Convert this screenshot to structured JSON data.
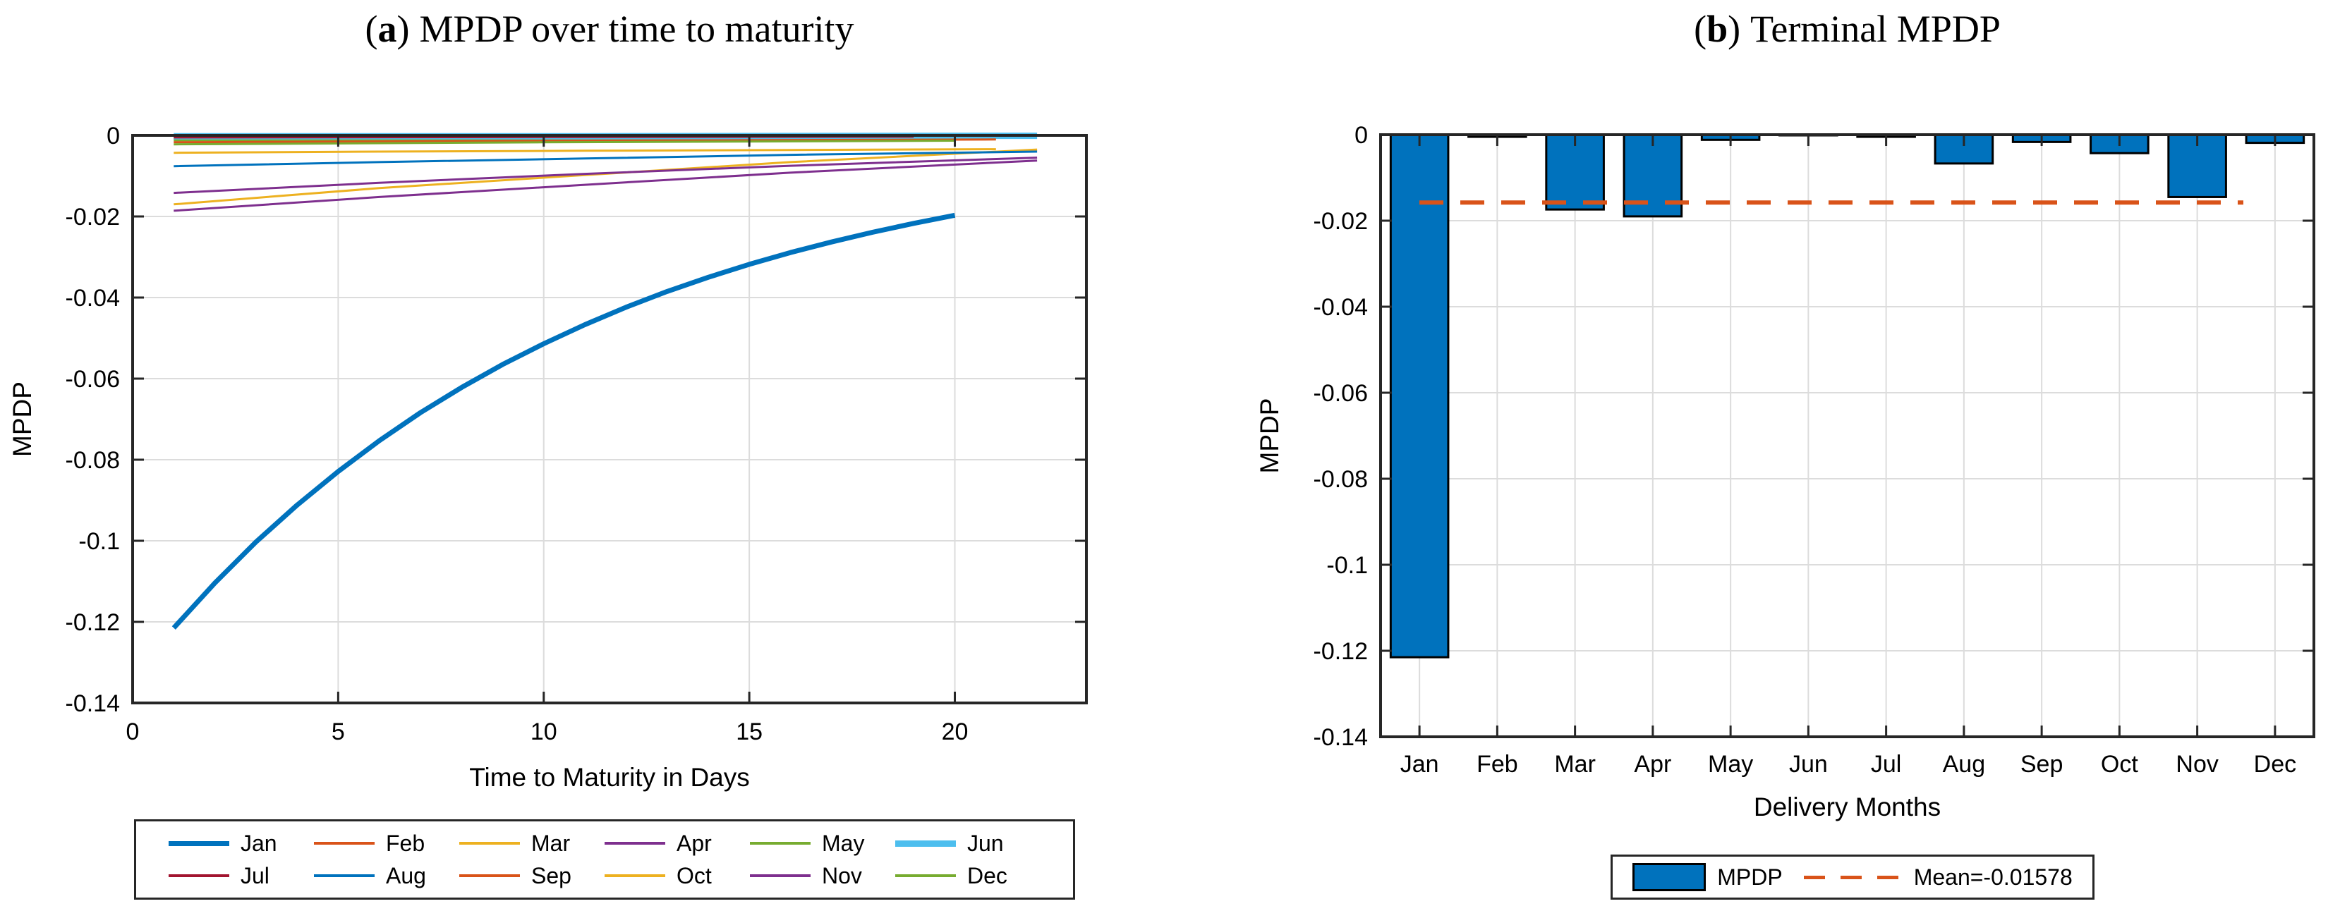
{
  "figure": {
    "background": "#ffffff",
    "axis_color": "#262626",
    "grid_color": "#dcdcdc",
    "text_color": "#000000"
  },
  "chart_data": [
    {
      "id": "mpdp-over-time",
      "type": "line",
      "label_open": "(",
      "panel_label": "a",
      "label_close": ")",
      "title": "MPDP over time to maturity",
      "xlabel": "Time to Maturity in Days",
      "ylabel": "MPDP",
      "xlim": [
        0,
        23.2
      ],
      "ylim": [
        -0.14,
        0
      ],
      "xticks": [
        0,
        5,
        10,
        15,
        20
      ],
      "xtick_labels": [
        "0",
        "5",
        "10",
        "15",
        "20"
      ],
      "yticks": [
        0,
        -0.02,
        -0.04,
        -0.06,
        -0.08,
        -0.1,
        -0.12,
        -0.14
      ],
      "ytick_labels": [
        "0",
        "-0.02",
        "-0.04",
        "-0.06",
        "-0.08",
        "-0.1",
        "-0.12",
        "-0.14"
      ],
      "grid": true,
      "legend_position": "below",
      "series": [
        {
          "name": "Jan",
          "color": "#0072BD",
          "width": 7,
          "points": [
            [
              1,
              -0.1215
            ],
            [
              2,
              -0.1104
            ],
            [
              3,
              -0.1003
            ],
            [
              4,
              -0.0912
            ],
            [
              5,
              -0.0829
            ],
            [
              6,
              -0.0753
            ],
            [
              7,
              -0.0684
            ],
            [
              8,
              -0.0622
            ],
            [
              9,
              -0.0565
            ],
            [
              10,
              -0.0514
            ],
            [
              11,
              -0.0467
            ],
            [
              12,
              -0.0424
            ],
            [
              13,
              -0.0385
            ],
            [
              14,
              -0.035
            ],
            [
              15,
              -0.0318
            ],
            [
              16,
              -0.0289
            ],
            [
              17,
              -0.0263
            ],
            [
              18,
              -0.0239
            ],
            [
              19,
              -0.0217
            ],
            [
              20,
              -0.0197
            ]
          ]
        },
        {
          "name": "Feb",
          "color": "#D95319",
          "width": 3,
          "points": [
            [
              1,
              -0.0008
            ],
            [
              11,
              -0.0006
            ],
            [
              21,
              -0.0004
            ]
          ]
        },
        {
          "name": "Mar",
          "color": "#EDB120",
          "width": 3,
          "points": [
            [
              1,
              -0.017
            ],
            [
              6,
              -0.013
            ],
            [
              11,
              -0.0098
            ],
            [
              16,
              -0.0066
            ],
            [
              22,
              -0.0035
            ]
          ]
        },
        {
          "name": "Apr",
          "color": "#7E2F8E",
          "width": 3,
          "points": [
            [
              1,
              -0.0186
            ],
            [
              6,
              -0.0152
            ],
            [
              11,
              -0.0122
            ],
            [
              16,
              -0.0092
            ],
            [
              22,
              -0.0062
            ]
          ]
        },
        {
          "name": "May",
          "color": "#77AC30",
          "width": 3,
          "points": [
            [
              1,
              -0.0012
            ],
            [
              10,
              -0.0009
            ],
            [
              20,
              -0.0007
            ]
          ]
        },
        {
          "name": "Jun",
          "color": "#4DBEEE",
          "width": 9,
          "points": [
            [
              1,
              -0.0002
            ],
            [
              11,
              -0.0002
            ],
            [
              22,
              -0.0001
            ]
          ]
        },
        {
          "name": "Jul",
          "color": "#A2142F",
          "width": 3,
          "points": [
            [
              1,
              -0.0005
            ],
            [
              10,
              -0.0004
            ],
            [
              19,
              -0.0003
            ]
          ]
        },
        {
          "name": "Aug",
          "color": "#0072BD",
          "width": 3,
          "points": [
            [
              1,
              -0.0076
            ],
            [
              6,
              -0.0066
            ],
            [
              11,
              -0.0057
            ],
            [
              16,
              -0.0048
            ],
            [
              22,
              -0.004
            ]
          ]
        },
        {
          "name": "Sep",
          "color": "#D95319",
          "width": 3,
          "points": [
            [
              1,
              -0.0017
            ],
            [
              11,
              -0.0013
            ],
            [
              21,
              -0.001
            ]
          ]
        },
        {
          "name": "Oct",
          "color": "#EDB120",
          "width": 3,
          "points": [
            [
              1,
              -0.0043
            ],
            [
              6,
              -0.004
            ],
            [
              11,
              -0.0038
            ],
            [
              16,
              -0.0036
            ],
            [
              21,
              -0.0034
            ]
          ]
        },
        {
          "name": "Nov",
          "color": "#7E2F8E",
          "width": 3,
          "points": [
            [
              1,
              -0.0142
            ],
            [
              6,
              -0.0117
            ],
            [
              11,
              -0.0095
            ],
            [
              16,
              -0.0075
            ],
            [
              22,
              -0.0055
            ]
          ]
        },
        {
          "name": "Dec",
          "color": "#77AC30",
          "width": 3,
          "points": [
            [
              1,
              -0.0022
            ],
            [
              10,
              -0.0017
            ],
            [
              20,
              -0.0013
            ]
          ]
        }
      ]
    },
    {
      "id": "terminal-mpdp",
      "type": "bar",
      "label_open": "(",
      "panel_label": "b",
      "label_close": ")",
      "title": "Terminal MPDP",
      "xlabel": "Delivery Months",
      "ylabel": "MPDP",
      "categories": [
        "Jan",
        "Feb",
        "Mar",
        "Apr",
        "May",
        "Jun",
        "Jul",
        "Aug",
        "Sep",
        "Oct",
        "Nov",
        "Dec"
      ],
      "values": [
        -0.1215,
        -0.0005,
        -0.0174,
        -0.019,
        -0.0012,
        -0.0001,
        -0.0005,
        -0.0067,
        -0.0017,
        -0.0043,
        -0.0145,
        -0.0019
      ],
      "ylim": [
        -0.14,
        0
      ],
      "yticks": [
        0,
        -0.02,
        -0.04,
        -0.06,
        -0.08,
        -0.1,
        -0.12,
        -0.14
      ],
      "ytick_labels": [
        "0",
        "-0.02",
        "-0.04",
        "-0.06",
        "-0.08",
        "-0.1",
        "-0.12",
        "-0.14"
      ],
      "grid": true,
      "bar_color": "#0072BD",
      "bar_edge_color": "#000000",
      "bar_width_frac": 0.74,
      "mean_line": {
        "value": -0.01578,
        "color": "#D95319",
        "style": "dashed",
        "label": "Mean=-0.01578"
      },
      "legend": [
        {
          "swatch": "bar-patch",
          "label": "MPDP"
        },
        {
          "swatch": "dashed-line",
          "label": "Mean=-0.01578"
        }
      ]
    }
  ]
}
